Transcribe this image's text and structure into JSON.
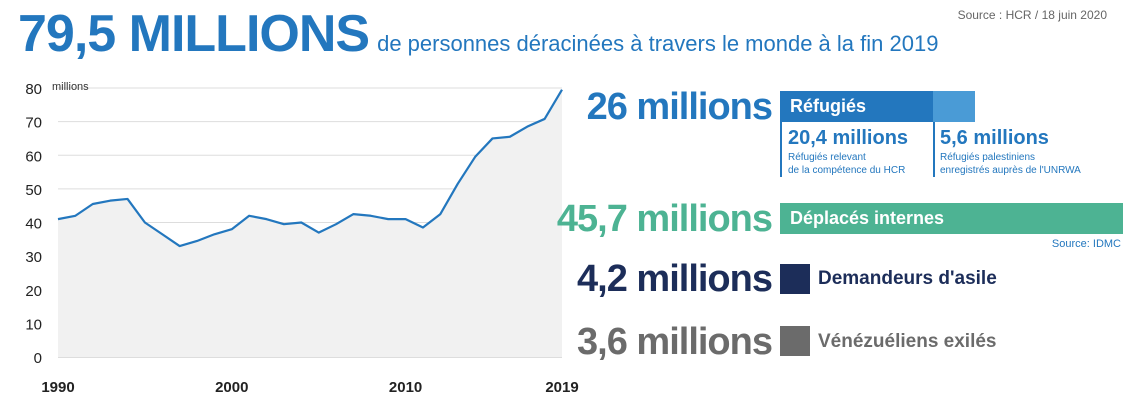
{
  "header": {
    "big_number": "79,5 MILLIONS",
    "subtitle": "de personnes déracinées à travers le monde à la fin 2019",
    "source": "Source : HCR / 18 juin 2020"
  },
  "chart_data": {
    "type": "area",
    "unit_label": "millions",
    "x": [
      1990,
      1991,
      1992,
      1993,
      1994,
      1995,
      1996,
      1997,
      1998,
      1999,
      2000,
      2001,
      2002,
      2003,
      2004,
      2005,
      2006,
      2007,
      2008,
      2009,
      2010,
      2011,
      2012,
      2013,
      2014,
      2015,
      2016,
      2017,
      2018,
      2019
    ],
    "values": [
      41,
      42,
      45.5,
      46.5,
      47,
      40,
      36.5,
      33,
      34.5,
      36.5,
      38,
      42,
      41,
      39.5,
      40,
      37,
      39.5,
      42.5,
      42,
      41,
      41,
      38.5,
      42.5,
      51.5,
      59.5,
      65,
      65.5,
      68.5,
      70.8,
      79.5
    ],
    "ylim": [
      0,
      80
    ],
    "xlim": [
      1990,
      2019
    ],
    "y_ticks": [
      0,
      10,
      20,
      30,
      40,
      50,
      60,
      70,
      80
    ],
    "x_ticks": [
      1990,
      2000,
      2010,
      2019
    ],
    "grid": true,
    "colors": {
      "line": "#2377be",
      "fill": "#f1f1f1",
      "grid": "#dddddd"
    }
  },
  "breakdown": {
    "refugees": {
      "value": "26 millions",
      "label": "Réfugiés",
      "color": "#2377be",
      "hcr_value": "20,4 millions",
      "hcr_desc_1": "Réfugiés relevant",
      "hcr_desc_2": "de la compétence du HCR",
      "unrwa_value": "5,6 millions",
      "unrwa_desc_1": "Réfugiés palestiniens",
      "unrwa_desc_2": "enregistrés auprès de l'UNRWA",
      "unrwa_color": "#4a9bd6"
    },
    "idp": {
      "value": "45,7 millions",
      "label": "Déplacés internes",
      "source": "Source: IDMC",
      "color": "#4db393"
    },
    "asylum": {
      "value": "4,2 millions",
      "label": "Demandeurs d'asile",
      "color": "#1c2d59"
    },
    "venezuelans": {
      "value": "3,6 millions",
      "label": "Vénézuéliens exilés",
      "color": "#6b6b6b"
    }
  }
}
